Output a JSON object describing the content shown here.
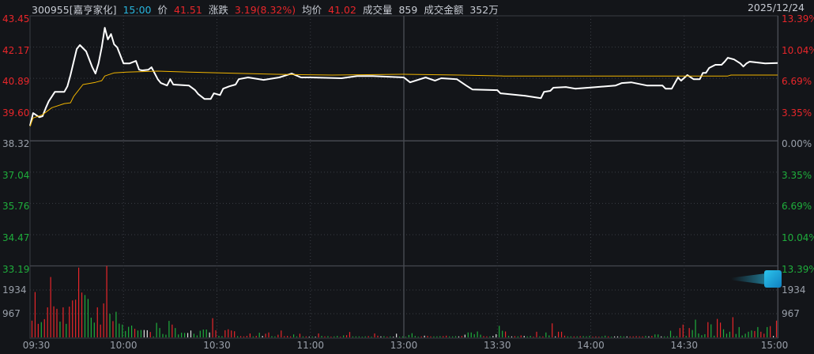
{
  "header": {
    "stock": "300955[嘉亨家化]",
    "time": "15:00",
    "price_label": "价",
    "price": "41.51",
    "change_label": "涨跌",
    "change": "3.19(8.32%)",
    "avg_label": "均价",
    "avg": "41.02",
    "volume_label": "成交量",
    "volume": "859",
    "amount_label": "成交金额",
    "amount": "352万",
    "date": "2025/12/24"
  },
  "colors": {
    "up": "#e8262a",
    "down": "#1fae3c",
    "flat": "#e0e0e0",
    "price_line": "#ffffff",
    "avg_line": "#f0b400",
    "background": "#131519"
  },
  "chart_data": {
    "type": "line",
    "prev_close": 38.32,
    "ylim": [
      33.19,
      43.45
    ],
    "left_ticks": [
      "43.45",
      "42.17",
      "40.89",
      "39.60",
      "38.32",
      "37.04",
      "35.76",
      "34.47",
      "33.19"
    ],
    "right_ticks": [
      "13.39%",
      "10.04%",
      "6.69%",
      "3.35%",
      "0.00%",
      "3.35%",
      "6.69%",
      "10.04%",
      "13.39%"
    ],
    "volume_ticks": [
      "1934",
      "967"
    ],
    "x_ticks": [
      "09:30",
      "10:00",
      "10:30",
      "11:00",
      "13:00",
      "13:30",
      "14:00",
      "14:30",
      "15:00"
    ],
    "series": [
      {
        "key": "price",
        "points": [
          [
            "09:30",
            38.94
          ],
          [
            "09:31",
            39.46
          ],
          [
            "09:33",
            39.29
          ],
          [
            "09:34",
            39.33
          ],
          [
            "09:35",
            39.65
          ],
          [
            "09:36",
            39.94
          ],
          [
            "09:38",
            40.33
          ],
          [
            "09:41",
            40.33
          ],
          [
            "09:42",
            40.56
          ],
          [
            "09:43",
            41.02
          ],
          [
            "09:45",
            42.09
          ],
          [
            "09:46",
            42.25
          ],
          [
            "09:48",
            41.99
          ],
          [
            "09:50",
            41.34
          ],
          [
            "09:51",
            41.08
          ],
          [
            "09:52",
            41.5
          ],
          [
            "09:53",
            42.15
          ],
          [
            "09:54",
            42.96
          ],
          [
            "09:55",
            42.48
          ],
          [
            "09:56",
            42.7
          ],
          [
            "09:57",
            42.28
          ],
          [
            "09:58",
            42.15
          ],
          [
            "10:00",
            41.5
          ],
          [
            "10:02",
            41.5
          ],
          [
            "10:04",
            41.6
          ],
          [
            "10:05",
            41.24
          ],
          [
            "10:06",
            41.21
          ],
          [
            "10:08",
            41.24
          ],
          [
            "10:09",
            41.34
          ],
          [
            "10:11",
            40.85
          ],
          [
            "10:12",
            40.69
          ],
          [
            "10:14",
            40.59
          ],
          [
            "10:15",
            40.85
          ],
          [
            "10:16",
            40.63
          ],
          [
            "10:21",
            40.59
          ],
          [
            "10:23",
            40.4
          ],
          [
            "10:24",
            40.24
          ],
          [
            "10:26",
            40.04
          ],
          [
            "10:28",
            40.04
          ],
          [
            "10:29",
            40.27
          ],
          [
            "10:31",
            40.2
          ],
          [
            "10:32",
            40.46
          ],
          [
            "10:34",
            40.56
          ],
          [
            "10:36",
            40.63
          ],
          [
            "10:37",
            40.85
          ],
          [
            "10:40",
            40.92
          ],
          [
            "10:45",
            40.82
          ],
          [
            "10:50",
            40.92
          ],
          [
            "10:54",
            41.08
          ],
          [
            "10:57",
            40.92
          ],
          [
            "11:00",
            40.92
          ],
          [
            "11:10",
            40.89
          ],
          [
            "11:15",
            40.98
          ],
          [
            "11:20",
            40.98
          ],
          [
            "11:25",
            40.95
          ],
          [
            "11:30",
            40.92
          ],
          [
            "13:00",
            40.92
          ],
          [
            "13:02",
            40.72
          ],
          [
            "13:07",
            40.92
          ],
          [
            "13:10",
            40.79
          ],
          [
            "13:12",
            40.89
          ],
          [
            "13:17",
            40.85
          ],
          [
            "13:20",
            40.59
          ],
          [
            "13:22",
            40.43
          ],
          [
            "13:30",
            40.4
          ],
          [
            "13:31",
            40.27
          ],
          [
            "13:39",
            40.17
          ],
          [
            "13:44",
            40.07
          ],
          [
            "13:45",
            40.33
          ],
          [
            "13:47",
            40.37
          ],
          [
            "13:48",
            40.5
          ],
          [
            "13:52",
            40.53
          ],
          [
            "13:55",
            40.46
          ],
          [
            "14:02",
            40.53
          ],
          [
            "14:08",
            40.59
          ],
          [
            "14:10",
            40.69
          ],
          [
            "14:13",
            40.72
          ],
          [
            "14:18",
            40.59
          ],
          [
            "14:23",
            40.59
          ],
          [
            "14:24",
            40.46
          ],
          [
            "14:26",
            40.46
          ],
          [
            "14:28",
            40.92
          ],
          [
            "14:29",
            40.79
          ],
          [
            "14:31",
            41.02
          ],
          [
            "14:33",
            40.85
          ],
          [
            "14:35",
            40.85
          ],
          [
            "14:36",
            41.11
          ],
          [
            "14:37",
            41.11
          ],
          [
            "14:38",
            41.31
          ],
          [
            "14:40",
            41.44
          ],
          [
            "14:42",
            41.44
          ],
          [
            "14:43",
            41.57
          ],
          [
            "14:44",
            41.73
          ],
          [
            "14:46",
            41.66
          ],
          [
            "14:48",
            41.5
          ],
          [
            "14:49",
            41.37
          ],
          [
            "14:50",
            41.5
          ],
          [
            "14:51",
            41.57
          ],
          [
            "14:56",
            41.5
          ],
          [
            "15:00",
            41.51
          ]
        ]
      },
      {
        "key": "average",
        "points": [
          [
            "09:30",
            38.91
          ],
          [
            "09:31",
            39.26
          ],
          [
            "09:34",
            39.39
          ],
          [
            "09:37",
            39.68
          ],
          [
            "09:41",
            39.85
          ],
          [
            "09:43",
            39.88
          ],
          [
            "09:44",
            40.14
          ],
          [
            "09:47",
            40.63
          ],
          [
            "09:51",
            40.72
          ],
          [
            "09:53",
            40.79
          ],
          [
            "09:54",
            40.98
          ],
          [
            "09:57",
            41.11
          ],
          [
            "10:01",
            41.14
          ],
          [
            "10:11",
            41.18
          ],
          [
            "10:21",
            41.14
          ],
          [
            "10:31",
            41.11
          ],
          [
            "10:49",
            41.05
          ],
          [
            "11:07",
            41.02
          ],
          [
            "11:30",
            41.05
          ],
          [
            "13:00",
            41.05
          ],
          [
            "13:18",
            41.02
          ],
          [
            "13:32",
            40.98
          ],
          [
            "14:44",
            40.98
          ],
          [
            "14:45",
            41.02
          ],
          [
            "15:00",
            41.02
          ]
        ]
      }
    ],
    "volume": {
      "max": 2901,
      "values": [
        680,
        1840,
        550,
        620,
        740,
        1220,
        2450,
        1260,
        1160,
        640,
        1220,
        550,
        1250,
        1500,
        1530,
        2830,
        1820,
        1720,
        1560,
        800,
        600,
        1220,
        520,
        1380,
        2900,
        960,
        660,
        1040,
        560,
        520,
        260,
        430,
        480,
        350,
        280,
        300,
        300,
        290,
        220,
        40,
        590,
        380,
        140,
        110,
        670,
        520,
        380,
        120,
        190,
        180,
        180,
        280,
        150,
        80,
        270,
        320,
        320,
        200,
        780,
        290,
        60,
        50,
        290,
        330,
        280,
        250,
        50,
        50,
        40,
        60,
        160,
        40,
        60,
        190,
        60,
        150,
        200,
        50,
        40,
        110,
        280,
        50,
        60,
        40,
        120,
        40,
        150,
        40,
        40,
        30,
        40,
        30,
        160,
        60,
        40,
        50,
        30,
        40,
        60,
        30,
        80,
        90,
        220,
        40,
        40,
        40,
        30,
        40,
        50,
        30,
        160,
        70,
        40,
        50,
        30,
        40,
        30,
        150,
        30,
        40,
        30,
        100,
        170,
        60,
        30,
        40,
        70,
        60,
        40,
        40,
        40,
        50,
        50,
        70,
        40,
        40,
        50,
        40,
        60,
        110,
        200,
        200,
        130,
        240,
        110,
        50,
        40,
        40,
        60,
        130,
        470,
        270,
        240,
        60,
        40,
        50,
        40,
        80,
        60,
        40,
        60,
        30,
        230,
        40,
        40,
        200,
        80,
        570,
        40,
        230,
        230,
        70,
        40,
        40,
        40,
        40,
        50,
        50,
        40,
        60,
        30,
        40,
        30,
        40,
        70,
        40,
        30,
        40,
        40,
        50,
        40,
        40,
        40,
        40,
        50,
        40,
        40,
        60,
        40,
        60,
        120,
        120,
        40,
        40,
        40,
        270,
        50,
        50,
        380,
        520,
        60,
        380,
        300,
        720,
        160,
        90,
        130,
        620,
        530,
        70,
        750,
        600,
        330,
        150,
        230,
        820,
        140,
        420,
        80,
        150,
        230,
        280,
        260,
        420,
        230,
        150,
        420,
        460,
        60,
        680
      ],
      "directions": "rrrgrrrrrgrgrrrrrggggrrrrgrggggggrggwwrggggggrggggwwgggggwrrggrrrrgrrrrgrgwrrggrrrrrggrgrwgwrgrgrggrgrrgggggrgrrwgrgwwgggggggrwrrgggrrgggwrwgggggrrgwwggrgwrgrwggrrgrggrwrrrggrgrgggrrrggrgwwggwrrrrrgwrggwgggggrrgrgggggrggrrgggrggggggrgrrgrwr"
    }
  }
}
